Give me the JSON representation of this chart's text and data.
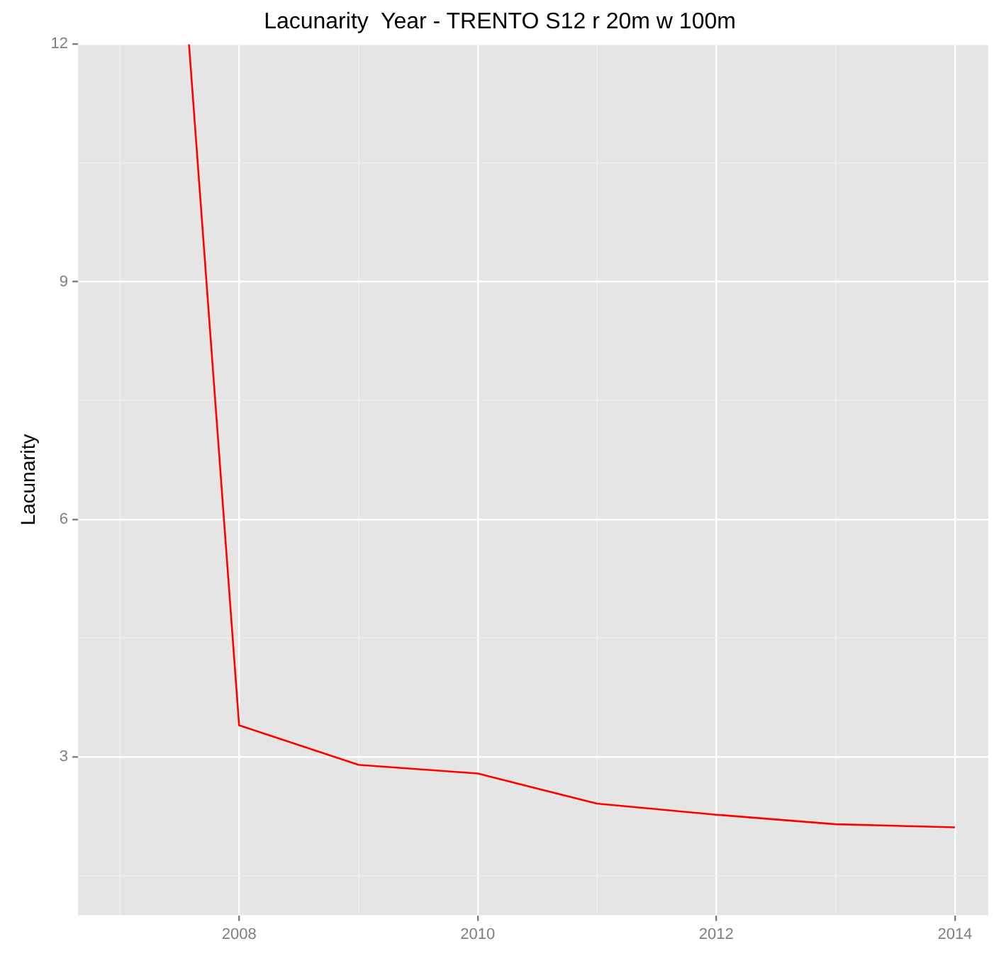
{
  "chart_data": {
    "type": "line",
    "title": "Lacunarity  Year - TRENTO S12 r 20m w 100m",
    "ylabel": "Lacunarity",
    "x": [
      2007.58,
      2008,
      2009,
      2010,
      2011,
      2012,
      2013,
      2014
    ],
    "series": [
      {
        "color": "#ff0000",
        "values": [
          12,
          3.4,
          2.9,
          2.79,
          2.41,
          2.27,
          2.15,
          2.11
        ]
      }
    ],
    "xlim": [
      2006.65,
      2014.28
    ],
    "xticks": [
      {
        "value": 2007,
        "label": null
      },
      2008,
      {
        "value": 2009,
        "label": null
      },
      2010,
      {
        "value": 2011,
        "label": null
      },
      2012,
      {
        "value": 2013,
        "label": null
      },
      2014
    ],
    "ylim": [
      1,
      12
    ],
    "yticks": [
      {
        "value": 1.5,
        "label": null
      },
      3,
      {
        "value": 4.5,
        "label": null
      },
      6,
      {
        "value": 7.5,
        "label": null
      },
      9,
      {
        "value": 10.5,
        "label": null
      },
      12
    ],
    "grid": true,
    "legend": false,
    "marker": "none",
    "line_style": "solid"
  }
}
